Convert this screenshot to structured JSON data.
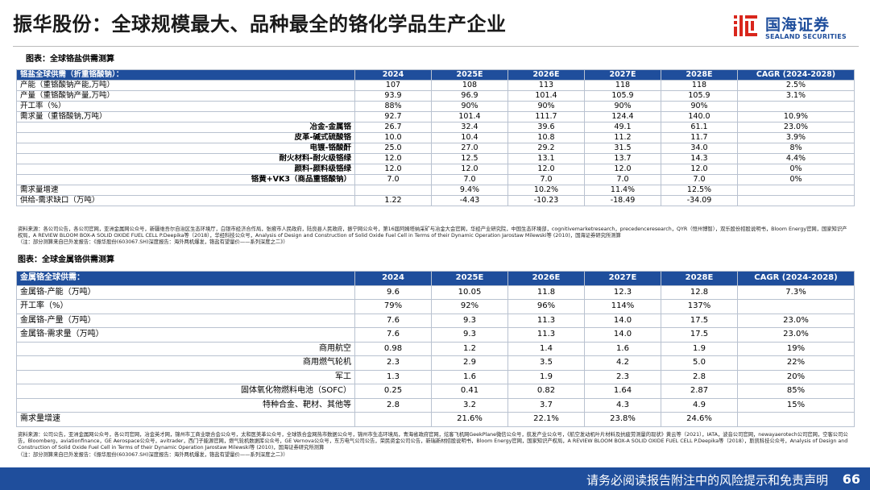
{
  "header": {
    "title": "振华股份：全球规模最大、品种最全的铬化学品生产企业",
    "logo_cn": "国海证券",
    "logo_en": "SEALAND SECURITIES"
  },
  "table1": {
    "caption": "图表：全球铬盐供需测算",
    "headers": [
      "铬盐全球供需（折重铬酸钠）：",
      "2024",
      "2025E",
      "2026E",
      "2027E",
      "2028E",
      "CAGR (2024-2028)"
    ],
    "rows": [
      {
        "label": "产能（重铬酸钠产能,万吨）",
        "sub": false,
        "values": [
          "107",
          "108",
          "113",
          "118",
          "118",
          "2.5%"
        ]
      },
      {
        "label": "产量（重铬酸钠产量,万吨）",
        "sub": false,
        "values": [
          "93.9",
          "96.9",
          "101.4",
          "105.9",
          "105.9",
          "3.1%"
        ]
      },
      {
        "label": "开工率（%）",
        "sub": false,
        "values": [
          "88%",
          "90%",
          "90%",
          "90%",
          "90%",
          ""
        ]
      },
      {
        "label": "需求量（重铬酸钠,万吨）",
        "sub": false,
        "values": [
          "92.7",
          "101.4",
          "111.7",
          "124.4",
          "140.0",
          "10.9%"
        ]
      },
      {
        "label": "冶金-金属铬",
        "sub": true,
        "values": [
          "26.7",
          "32.4",
          "39.6",
          "49.1",
          "61.1",
          "23.0%"
        ]
      },
      {
        "label": "皮革-碱式硫酸铬",
        "sub": true,
        "values": [
          "10.0",
          "10.4",
          "10.8",
          "11.2",
          "11.7",
          "3.9%"
        ]
      },
      {
        "label": "电镀-铬酸酐",
        "sub": true,
        "values": [
          "25.0",
          "27.0",
          "29.2",
          "31.5",
          "34.0",
          "8%"
        ]
      },
      {
        "label": "耐火材料-耐火级铬绿",
        "sub": true,
        "values": [
          "12.0",
          "12.5",
          "13.1",
          "13.7",
          "14.3",
          "4.4%"
        ]
      },
      {
        "label": "颜料-颜料级铬绿",
        "sub": true,
        "values": [
          "12.0",
          "12.0",
          "12.0",
          "12.0",
          "12.0",
          "0%"
        ]
      },
      {
        "label": "铬黄+VK3（商品重铬酸钠）",
        "sub": true,
        "values": [
          "7.0",
          "7.0",
          "7.0",
          "7.0",
          "7.0",
          "0%"
        ]
      },
      {
        "label": "需求量增速",
        "sub": false,
        "values": [
          "",
          "9.4%",
          "10.2%",
          "11.4%",
          "12.5%",
          ""
        ]
      },
      {
        "label": "供给-需求缺口（万吨）",
        "sub": false,
        "values": [
          "1.22",
          "-4.43",
          "-10.23",
          "-18.49",
          "-34.09",
          ""
        ]
      }
    ],
    "source": "资料来源：各公司公告，各公司官网，亚洲金属网公众号，新疆维吾尔自治区生态环境厅，白银市经济合作局，张掖市人民政府，陆良县人民政府，振宁网公众号，第16届阿姆塔纳采矿与冶金大会官网，华经产业研究院，中国生态环境部，cognitivemarketresearch，precedenceresearch，QYR（恒州博智），双乐股份招股说明书，Bloom Energy官网，国家知识产权局，A REVIEW BLOOM BOX-A SOLID OXIDE FUEL CELL P.Deepika等（2018），华经科技公众号，Analysis of Design and Construction of Solid Oxide Fuel Cell in Terms of their Dynamic Operation Jarostaw Milewski等 (2010)，国海证券研究所测算",
    "note": "（注：部分测算来自已外发报告：《振华股份(603067.SH)深度报告：海外两机爆发，铬盐有望量价——系列深度之二》）"
  },
  "table2": {
    "caption": "图表：全球金属铬供需测算",
    "headers": [
      "金属铬全球供需：",
      "2024",
      "2025E",
      "2026E",
      "2027E",
      "2028E",
      "CAGR (2024-2028)"
    ],
    "rows": [
      {
        "label": "金属铬-产能（万吨）",
        "sub": false,
        "values": [
          "9.6",
          "10.05",
          "11.8",
          "12.3",
          "12.8",
          "7.3%"
        ]
      },
      {
        "label": "开工率（%）",
        "sub": false,
        "values": [
          "79%",
          "92%",
          "96%",
          "114%",
          "137%",
          ""
        ]
      },
      {
        "label": "金属铬-产量（万吨）",
        "sub": false,
        "values": [
          "7.6",
          "9.3",
          "11.3",
          "14.0",
          "17.5",
          "23.0%"
        ]
      },
      {
        "label": "金属铬-需求量（万吨）",
        "sub": false,
        "values": [
          "7.6",
          "9.3",
          "11.3",
          "14.0",
          "17.5",
          "23.0%"
        ]
      },
      {
        "label": "商用航空",
        "sub": true,
        "values": [
          "0.98",
          "1.2",
          "1.4",
          "1.6",
          "1.9",
          "19%"
        ]
      },
      {
        "label": "商用燃气轮机",
        "sub": true,
        "values": [
          "2.3",
          "2.9",
          "3.5",
          "4.2",
          "5.0",
          "22%"
        ]
      },
      {
        "label": "军工",
        "sub": true,
        "values": [
          "1.3",
          "1.6",
          "1.9",
          "2.3",
          "2.8",
          "20%"
        ]
      },
      {
        "label": "固体氧化物燃料电池（SOFC）",
        "sub": true,
        "values": [
          "0.25",
          "0.41",
          "0.82",
          "1.64",
          "2.87",
          "85%"
        ]
      },
      {
        "label": "特种合金、靶材、其他等",
        "sub": true,
        "values": [
          "2.8",
          "3.2",
          "3.7",
          "4.3",
          "4.9",
          "15%"
        ]
      },
      {
        "label": "需求量增速",
        "sub": false,
        "values": [
          "",
          "21.6%",
          "22.1%",
          "23.8%",
          "24.6%",
          ""
        ]
      }
    ],
    "source": "资料来源：公司公告，亚洲金属网公众号，各公司官网，冶金英才网，锦州市工商业联合会公众号，太和医美革公众号，全球铁合金网热市数据公众号，锦州市生态环境局，青海省政府官网，炫客飞机网GeekPlane微信公众号，航发产业公众号，《航空发动机叶片材料及抗疲劳测量的现状》黄云等（2021），IATA，波音公司官网，newayaerotech公司官网，空客公司公告，Bloomberg，aviationfinance，GE Aerospace公众号，avitrader，西门子能源官网，燃气轮机数据库公众号，GE Vernova公众号，东方电气公司公告，荣民资金公司公告，新瑞新材招股说明书，Bloom Energy官网，国家知识产权局，A REVIEW BLOOM BOX-A SOLID OXIDE FUEL CELL P.Deepika等（2018），斯凯科技公众号，Analysis of Design and Construction of Solid Oxide Fuel Cell in Terms of their Dynamic Operation Jarostaw Milewski等 (2010)，国海证券研究所测算",
    "note": "（注：部分测算来自已外发报告：《振华股份(603067.SH)深度报告：海外两机爆发，铬盐有望量价——系列深度之二》）"
  },
  "footer": {
    "disclaimer": "请务必阅读报告附注中的风险提示和免责声明",
    "page": "66"
  },
  "colors": {
    "brand": "#1f4e9c",
    "grid": "#b9c2d0"
  }
}
